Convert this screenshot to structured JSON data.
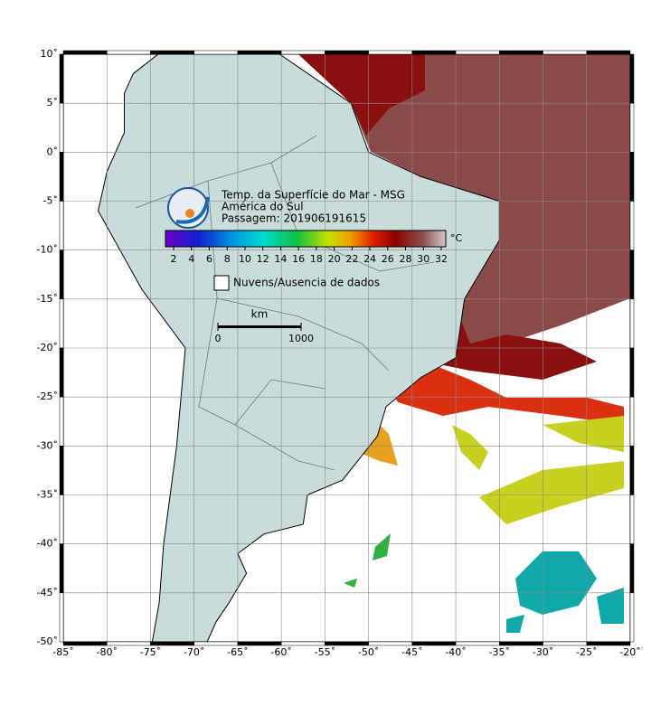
{
  "title": {
    "lines": [
      "Temp. da Superfície do Mar - MSG",
      "América do Sul",
      "Passagem: 201906191615"
    ]
  },
  "colorbar": {
    "unit": "°C",
    "ticks": [
      2,
      4,
      6,
      8,
      10,
      12,
      14,
      16,
      18,
      20,
      22,
      24,
      26,
      28,
      30,
      32
    ]
  },
  "legend": {
    "label": "Nuvens/Ausencia de dados"
  },
  "scale_bar": {
    "unit": "km",
    "ticks": [
      0,
      1000
    ]
  },
  "axes": {
    "lon_ticks": [
      {
        "value": -85,
        "label": "-85˚"
      },
      {
        "value": -80,
        "label": "-80˚"
      },
      {
        "value": -75,
        "label": "-75˚"
      },
      {
        "value": -70,
        "label": "-70˚"
      },
      {
        "value": -65,
        "label": "-65˚"
      },
      {
        "value": -60,
        "label": "-60˚"
      },
      {
        "value": -55,
        "label": "-55˚"
      },
      {
        "value": -50,
        "label": "-50˚"
      },
      {
        "value": -45,
        "label": "-45˚"
      },
      {
        "value": -40,
        "label": "-40˚"
      },
      {
        "value": -35,
        "label": "-35˚"
      },
      {
        "value": -30,
        "label": "-30˚"
      },
      {
        "value": -25,
        "label": "-25˚"
      },
      {
        "value": -20,
        "label": "-20˚"
      }
    ],
    "lat_ticks": [
      {
        "value": 10,
        "label": "10˚"
      },
      {
        "value": 5,
        "label": "5˚"
      },
      {
        "value": 0,
        "label": "0˚"
      },
      {
        "value": -5,
        "label": "-5˚"
      },
      {
        "value": -10,
        "label": "-10˚"
      },
      {
        "value": -15,
        "label": "-15˚"
      },
      {
        "value": -20,
        "label": "-20˚"
      },
      {
        "value": -25,
        "label": "-25˚"
      },
      {
        "value": -30,
        "label": "-30˚"
      },
      {
        "value": -35,
        "label": "-35˚"
      },
      {
        "value": -40,
        "label": "-40˚"
      },
      {
        "value": -45,
        "label": "-45˚"
      },
      {
        "value": -50,
        "label": "-50˚"
      }
    ]
  }
}
